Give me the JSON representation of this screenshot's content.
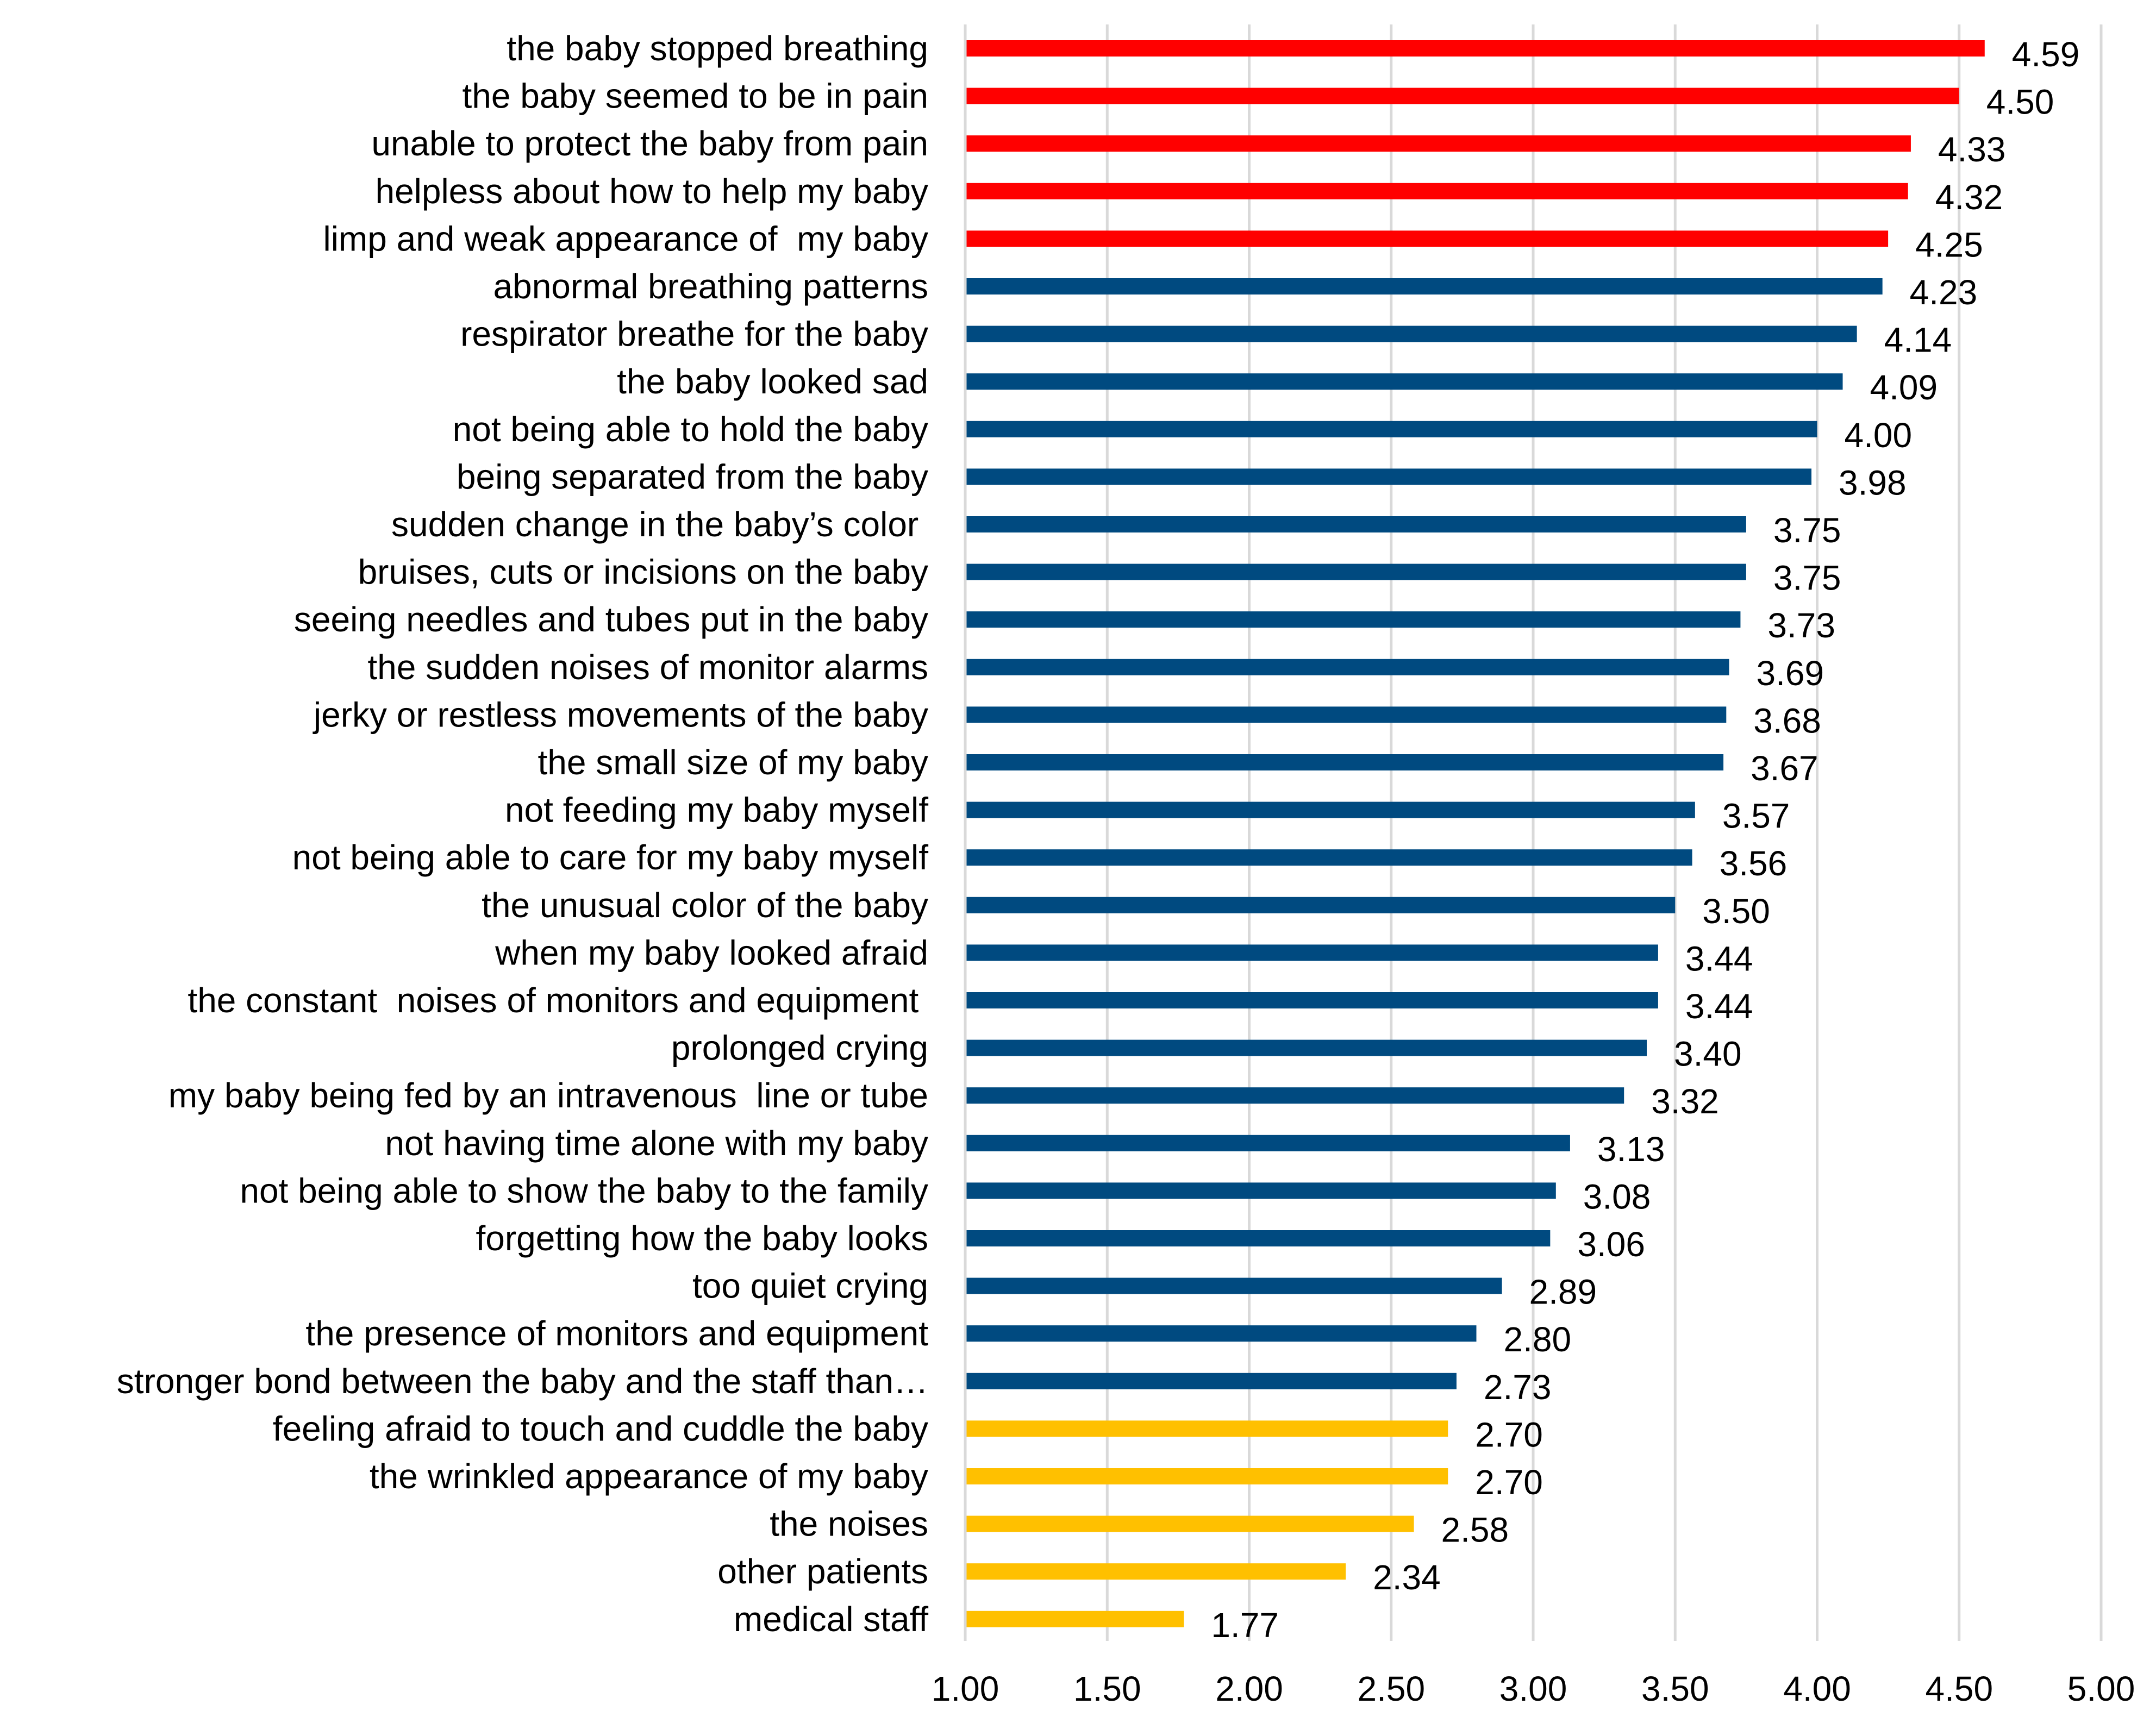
{
  "chart_data": {
    "type": "bar",
    "orientation": "horizontal",
    "title": "",
    "xlabel": "",
    "ylabel": "",
    "xlim": [
      1.0,
      5.0
    ],
    "x_ticks": [
      "1.00",
      "1.50",
      "2.00",
      "2.50",
      "3.00",
      "3.50",
      "4.00",
      "4.50",
      "5.00"
    ],
    "x_tick_values": [
      1.0,
      1.5,
      2.0,
      2.5,
      3.0,
      3.5,
      4.0,
      4.5,
      5.0
    ],
    "grid": "vertical",
    "legend": "none",
    "colors": {
      "high": "#ff0000",
      "medium": "#004a80",
      "low": "#ffc000",
      "grid": "#d9d9d9",
      "text": "#000000"
    },
    "categories": [
      "the baby stopped breathing",
      "the baby seemed to be in pain",
      "unable to protect the baby from pain",
      "helpless about how to help my baby",
      "limp and weak appearance of  my baby",
      "abnormal breathing patterns",
      "respirator breathe for the baby",
      "the baby looked sad",
      "not being able to hold the baby",
      "being separated from the baby",
      "sudden change in the baby’s color ",
      "bruises, cuts or incisions on the baby",
      "seeing needles and tubes put in the baby",
      "the sudden noises of monitor alarms",
      "jerky or restless movements of the baby",
      "the small size of my baby",
      "not feeding my baby myself",
      "not being able to care for my baby myself",
      "the unusual color of the baby",
      "when my baby looked afraid",
      "the constant  noises of monitors and equipment ",
      "prolonged crying",
      "my baby being fed by an intravenous  line or tube",
      "not having time alone with my baby",
      "not being able to show the baby to the family",
      "forgetting how the baby looks",
      "too quiet crying",
      "the presence of monitors and equipment",
      "stronger bond between the baby and the staff than…",
      "feeling afraid to touch and cuddle the baby",
      "the wrinkled appearance of my baby",
      "the noises",
      "other patients",
      "medical staff"
    ],
    "values": [
      4.59,
      4.5,
      4.33,
      4.32,
      4.25,
      4.23,
      4.14,
      4.09,
      4.0,
      3.98,
      3.75,
      3.75,
      3.73,
      3.69,
      3.68,
      3.67,
      3.57,
      3.56,
      3.5,
      3.44,
      3.44,
      3.4,
      3.32,
      3.13,
      3.08,
      3.06,
      2.89,
      2.8,
      2.73,
      2.7,
      2.7,
      2.58,
      2.34,
      1.77
    ],
    "value_labels": [
      "4.59",
      "4.50",
      "4.33",
      "4.32",
      "4.25",
      "4.23",
      "4.14",
      "4.09",
      "4.00",
      "3.98",
      "3.75",
      "3.75",
      "3.73",
      "3.69",
      "3.68",
      "3.67",
      "3.57",
      "3.56",
      "3.50",
      "3.44",
      "3.44",
      "3.40",
      "3.32",
      "3.13",
      "3.08",
      "3.06",
      "2.89",
      "2.80",
      "2.73",
      "2.70",
      "2.70",
      "2.58",
      "2.34",
      "1.77"
    ],
    "groups": [
      "high",
      "high",
      "high",
      "high",
      "high",
      "medium",
      "medium",
      "medium",
      "medium",
      "medium",
      "medium",
      "medium",
      "medium",
      "medium",
      "medium",
      "medium",
      "medium",
      "medium",
      "medium",
      "medium",
      "medium",
      "medium",
      "medium",
      "medium",
      "medium",
      "medium",
      "medium",
      "medium",
      "medium",
      "low",
      "low",
      "low",
      "low",
      "low"
    ]
  }
}
